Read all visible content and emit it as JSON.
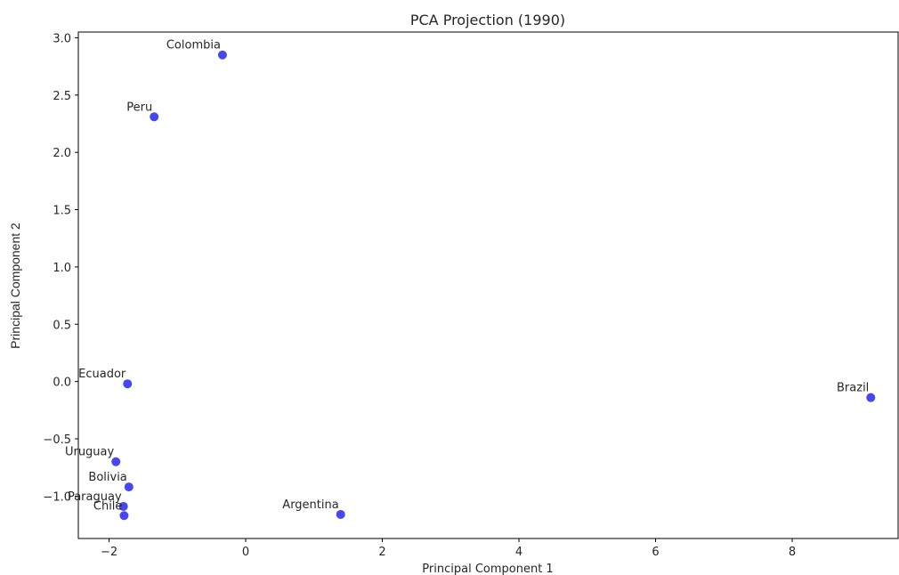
{
  "chart_data": {
    "type": "scatter",
    "title": "PCA Projection (1990)",
    "xlabel": "Principal Component 1",
    "ylabel": "Principal Component 2",
    "xlim": [
      -2.45,
      9.55
    ],
    "ylim": [
      -1.37,
      3.05
    ],
    "xticks": [
      -2,
      0,
      2,
      4,
      6,
      8
    ],
    "yticks": [
      -1.0,
      -0.5,
      0.0,
      0.5,
      1.0,
      1.5,
      2.0,
      2.5,
      3.0
    ],
    "xtick_labels": [
      "−2",
      "0",
      "2",
      "4",
      "6",
      "8"
    ],
    "ytick_labels": [
      "−1.0",
      "−0.5",
      "0.0",
      "0.5",
      "1.0",
      "1.5",
      "2.0",
      "2.5",
      "3.0"
    ],
    "grid": false,
    "marker_color": "#3333ee",
    "points": [
      {
        "label": "Colombia",
        "x": -0.34,
        "y": 2.85
      },
      {
        "label": "Peru",
        "x": -1.34,
        "y": 2.31
      },
      {
        "label": "Ecuador",
        "x": -1.73,
        "y": -0.02
      },
      {
        "label": "Brazil",
        "x": 9.15,
        "y": -0.14
      },
      {
        "label": "Uruguay",
        "x": -1.9,
        "y": -0.7
      },
      {
        "label": "Bolivia",
        "x": -1.71,
        "y": -0.92
      },
      {
        "label": "Paraguay",
        "x": -1.79,
        "y": -1.09
      },
      {
        "label": "Chile",
        "x": -1.78,
        "y": -1.17
      },
      {
        "label": "Argentina",
        "x": 1.39,
        "y": -1.16
      }
    ]
  }
}
